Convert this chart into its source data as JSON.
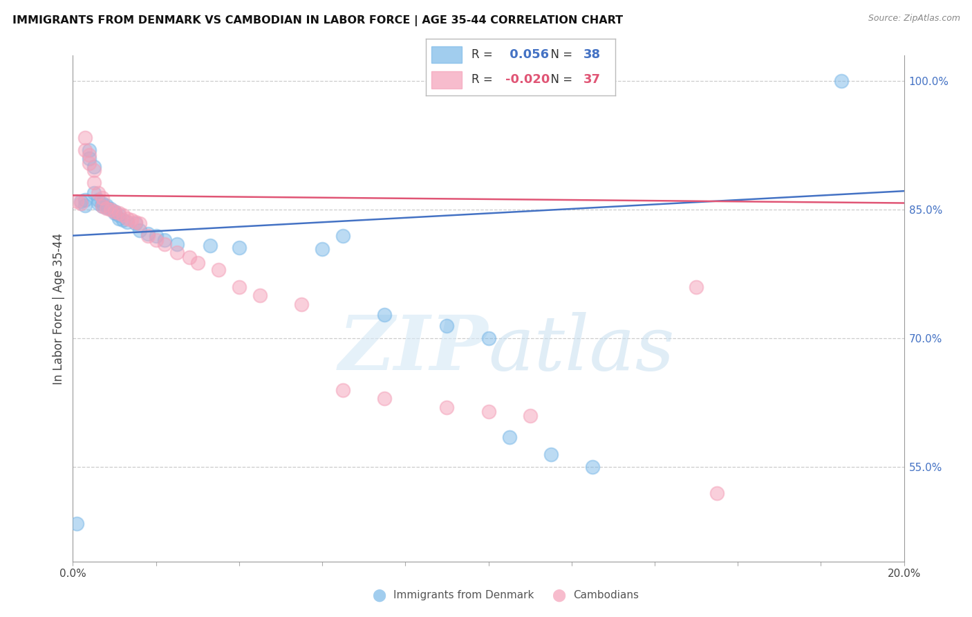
{
  "title": "IMMIGRANTS FROM DENMARK VS CAMBODIAN IN LABOR FORCE | AGE 35-44 CORRELATION CHART",
  "source": "Source: ZipAtlas.com",
  "ylabel": "In Labor Force | Age 35-44",
  "xlim": [
    0.0,
    0.2
  ],
  "ylim": [
    0.44,
    1.03
  ],
  "right_yticks": [
    0.55,
    0.7,
    0.85,
    1.0
  ],
  "right_ytick_labels": [
    "55.0%",
    "70.0%",
    "85.0%",
    "100.0%"
  ],
  "denmark_R": 0.056,
  "denmark_N": 38,
  "cambodian_R": -0.02,
  "cambodian_N": 37,
  "denmark_color": "#7ab8e8",
  "cambodian_color": "#f4a0b8",
  "denmark_line_color": "#4472c4",
  "cambodian_line_color": "#e05575",
  "denmark_x": [
    0.001,
    0.002,
    0.003,
    0.003,
    0.004,
    0.004,
    0.005,
    0.005,
    0.006,
    0.006,
    0.007,
    0.007,
    0.008,
    0.008,
    0.009,
    0.01,
    0.01,
    0.011,
    0.011,
    0.012,
    0.013,
    0.015,
    0.016,
    0.018,
    0.02,
    0.022,
    0.025,
    0.033,
    0.04,
    0.06,
    0.065,
    0.075,
    0.09,
    0.1,
    0.105,
    0.115,
    0.125,
    0.185
  ],
  "denmark_y": [
    0.484,
    0.86,
    0.862,
    0.855,
    0.92,
    0.91,
    0.9,
    0.87,
    0.862,
    0.858,
    0.858,
    0.854,
    0.855,
    0.853,
    0.851,
    0.848,
    0.846,
    0.844,
    0.84,
    0.838,
    0.836,
    0.834,
    0.826,
    0.822,
    0.82,
    0.815,
    0.81,
    0.808,
    0.806,
    0.804,
    0.82,
    0.728,
    0.715,
    0.7,
    0.585,
    0.565,
    0.55,
    1.0
  ],
  "cambodian_x": [
    0.001,
    0.002,
    0.003,
    0.003,
    0.004,
    0.004,
    0.005,
    0.005,
    0.006,
    0.007,
    0.007,
    0.008,
    0.009,
    0.01,
    0.011,
    0.012,
    0.013,
    0.014,
    0.015,
    0.016,
    0.018,
    0.02,
    0.022,
    0.025,
    0.028,
    0.03,
    0.035,
    0.04,
    0.045,
    0.055,
    0.065,
    0.075,
    0.09,
    0.1,
    0.11,
    0.15,
    0.155
  ],
  "cambodian_y": [
    0.86,
    0.858,
    0.934,
    0.92,
    0.914,
    0.904,
    0.896,
    0.882,
    0.87,
    0.864,
    0.854,
    0.852,
    0.85,
    0.848,
    0.846,
    0.844,
    0.84,
    0.838,
    0.836,
    0.834,
    0.82,
    0.815,
    0.81,
    0.8,
    0.795,
    0.788,
    0.78,
    0.76,
    0.75,
    0.74,
    0.64,
    0.63,
    0.62,
    0.615,
    0.61,
    0.76,
    0.52
  ],
  "denmark_trendline": [
    0.82,
    0.872
  ],
  "cambodian_trendline": [
    0.867,
    0.858
  ],
  "grid_yticks": [
    0.55,
    0.7,
    0.85,
    1.0
  ],
  "background_color": "#ffffff"
}
